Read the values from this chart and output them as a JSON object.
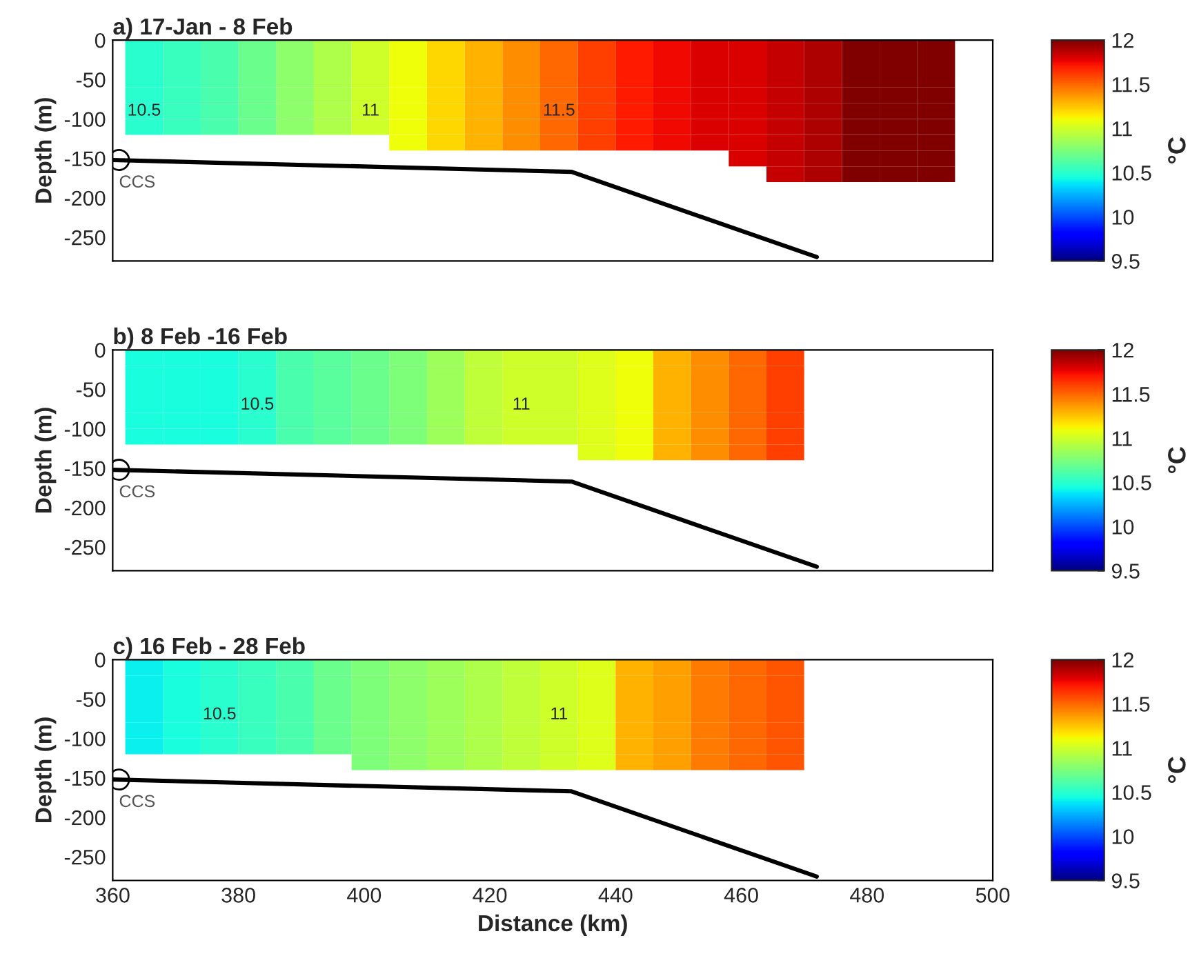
{
  "chart_data": [
    {
      "type": "heatmap",
      "title": "a) 17-Jan - 8 Feb",
      "ylabel": "Depth (m)",
      "clabel": "°C",
      "tick_labels": "y",
      "x": [
        365,
        371,
        377,
        383,
        389,
        395,
        401,
        407,
        413,
        419,
        425,
        431,
        437,
        443,
        449,
        455,
        461,
        467,
        473,
        479,
        485,
        491
      ],
      "y": [
        -10,
        -30,
        -50,
        -70,
        -90,
        -110,
        -130,
        -150,
        -170
      ],
      "cells": [
        [
          10.5,
          10.55,
          10.6,
          10.7,
          10.8,
          10.9,
          11.0,
          11.1,
          11.2,
          11.3,
          11.4,
          11.5,
          11.6,
          11.7,
          11.75,
          11.8,
          11.8,
          11.85,
          11.9,
          12,
          12,
          12
        ],
        [
          10.5,
          10.55,
          10.6,
          10.7,
          10.8,
          10.9,
          11.0,
          11.1,
          11.2,
          11.3,
          11.4,
          11.5,
          11.6,
          11.7,
          11.75,
          11.8,
          11.8,
          11.85,
          11.9,
          12,
          12,
          12
        ],
        [
          10.5,
          10.55,
          10.6,
          10.7,
          10.8,
          10.9,
          11.0,
          11.1,
          11.2,
          11.3,
          11.4,
          11.5,
          11.6,
          11.7,
          11.75,
          11.8,
          11.8,
          11.85,
          11.9,
          12,
          12,
          12
        ],
        [
          10.5,
          10.55,
          10.6,
          10.7,
          10.8,
          10.9,
          11.0,
          11.1,
          11.2,
          11.3,
          11.4,
          11.5,
          11.6,
          11.7,
          11.75,
          11.8,
          11.8,
          11.85,
          11.9,
          12,
          12,
          12
        ],
        [
          10.5,
          10.55,
          10.6,
          10.7,
          10.8,
          10.9,
          11.0,
          11.1,
          11.2,
          11.3,
          11.4,
          11.5,
          11.6,
          11.7,
          11.75,
          11.8,
          11.8,
          11.85,
          11.9,
          12,
          12,
          12
        ],
        [
          10.5,
          10.55,
          10.6,
          10.7,
          10.8,
          10.9,
          11.0,
          11.1,
          11.2,
          11.3,
          11.4,
          11.5,
          11.6,
          11.7,
          11.75,
          11.8,
          11.8,
          11.85,
          11.9,
          12,
          12,
          12
        ],
        [
          null,
          null,
          null,
          null,
          null,
          null,
          null,
          11.1,
          11.2,
          11.3,
          11.4,
          11.5,
          11.6,
          11.7,
          11.75,
          11.8,
          11.8,
          11.85,
          11.9,
          12,
          12,
          12
        ],
        [
          null,
          null,
          null,
          null,
          null,
          null,
          null,
          null,
          null,
          null,
          null,
          null,
          null,
          null,
          null,
          null,
          11.8,
          11.85,
          11.9,
          12,
          12,
          12
        ],
        [
          null,
          null,
          null,
          null,
          null,
          null,
          null,
          null,
          null,
          null,
          null,
          null,
          null,
          null,
          null,
          null,
          null,
          11.85,
          11.9,
          12,
          12,
          12
        ]
      ],
      "clim": [
        9.5,
        12
      ],
      "cticks": [
        9.5,
        10,
        10.5,
        11,
        11.5,
        12
      ],
      "xlim": [
        360,
        500
      ],
      "xticks": [
        360,
        380,
        400,
        420,
        440,
        460,
        480,
        500
      ],
      "ylim": [
        -280,
        0
      ],
      "yticks": [
        -250,
        -200,
        -150,
        -100,
        -50,
        0
      ],
      "series": [
        {
          "type": "line",
          "color": "#000000",
          "x": [
            360,
            433,
            472
          ],
          "values": [
            -152,
            -167,
            -275
          ]
        },
        {
          "type": "scatter",
          "color": "#000000",
          "marker": "circle",
          "x": [
            361
          ],
          "values": [
            -152
          ]
        }
      ],
      "annotations": [
        "10.5",
        "11",
        "11.5",
        "CCS"
      ]
    },
    {
      "type": "heatmap",
      "title": "b) 8 Feb -16 Feb",
      "ylabel": "Depth (m)",
      "clabel": "°C",
      "tick_labels": "y",
      "x": [
        365,
        371,
        377,
        383,
        389,
        395,
        401,
        407,
        413,
        419,
        425,
        431,
        437,
        443,
        449,
        455,
        461,
        467
      ],
      "y": [
        -10,
        -30,
        -50,
        -70,
        -90,
        -110,
        -130
      ],
      "cells": [
        [
          10.45,
          10.45,
          10.45,
          10.5,
          10.6,
          10.65,
          10.7,
          10.75,
          10.85,
          10.95,
          11.0,
          11.0,
          11.05,
          11.1,
          11.3,
          11.4,
          11.5,
          11.6
        ],
        [
          10.45,
          10.45,
          10.45,
          10.5,
          10.6,
          10.65,
          10.7,
          10.75,
          10.85,
          10.95,
          11.0,
          11.0,
          11.05,
          11.1,
          11.3,
          11.4,
          11.5,
          11.6
        ],
        [
          10.45,
          10.45,
          10.45,
          10.5,
          10.6,
          10.65,
          10.7,
          10.75,
          10.85,
          10.95,
          11.0,
          11.0,
          11.05,
          11.1,
          11.3,
          11.4,
          11.5,
          11.6
        ],
        [
          10.45,
          10.45,
          10.45,
          10.5,
          10.6,
          10.65,
          10.7,
          10.75,
          10.85,
          10.95,
          11.0,
          11.0,
          11.05,
          11.1,
          11.3,
          11.4,
          11.5,
          11.6
        ],
        [
          10.45,
          10.45,
          10.45,
          10.5,
          10.6,
          10.65,
          10.7,
          10.75,
          10.85,
          10.95,
          11.0,
          11.0,
          11.05,
          11.1,
          11.3,
          11.4,
          11.5,
          11.6
        ],
        [
          10.45,
          10.45,
          10.45,
          10.5,
          10.6,
          10.65,
          10.7,
          10.75,
          10.85,
          10.95,
          11.0,
          11.0,
          11.05,
          11.1,
          11.3,
          11.4,
          11.5,
          11.6
        ],
        [
          null,
          null,
          null,
          null,
          null,
          null,
          null,
          null,
          null,
          null,
          null,
          null,
          11.05,
          11.1,
          11.3,
          11.4,
          11.5,
          11.6
        ]
      ],
      "clim": [
        9.5,
        12
      ],
      "cticks": [
        9.5,
        10,
        10.5,
        11,
        11.5,
        12
      ],
      "xlim": [
        360,
        500
      ],
      "xticks": [
        360,
        380,
        400,
        420,
        440,
        460,
        480,
        500
      ],
      "ylim": [
        -280,
        0
      ],
      "yticks": [
        -250,
        -200,
        -150,
        -100,
        -50,
        0
      ],
      "series": [
        {
          "type": "line",
          "color": "#000000",
          "x": [
            360,
            433,
            472
          ],
          "values": [
            -152,
            -167,
            -275
          ]
        },
        {
          "type": "scatter",
          "color": "#000000",
          "marker": "circle",
          "x": [
            361
          ],
          "values": [
            -152
          ]
        }
      ],
      "annotations": [
        "10.5",
        "11",
        "CCS"
      ]
    },
    {
      "type": "heatmap",
      "title": "c) 16 Feb - 28 Feb",
      "xlabel": "Distance (km)",
      "ylabel": "Depth (m)",
      "clabel": "°C",
      "x": [
        365,
        371,
        377,
        383,
        389,
        395,
        401,
        407,
        413,
        419,
        425,
        431,
        437,
        443,
        449,
        455,
        461,
        467
      ],
      "y": [
        -10,
        -30,
        -50,
        -70,
        -90,
        -110,
        -130
      ],
      "cells": [
        [
          10.4,
          10.45,
          10.5,
          10.55,
          10.6,
          10.7,
          10.75,
          10.8,
          10.85,
          10.9,
          10.95,
          11.0,
          11.05,
          11.3,
          11.35,
          11.45,
          11.5,
          11.55
        ],
        [
          10.4,
          10.45,
          10.5,
          10.55,
          10.6,
          10.7,
          10.75,
          10.8,
          10.85,
          10.9,
          10.95,
          11.0,
          11.05,
          11.3,
          11.35,
          11.45,
          11.5,
          11.55
        ],
        [
          10.4,
          10.45,
          10.5,
          10.55,
          10.6,
          10.7,
          10.75,
          10.8,
          10.85,
          10.9,
          10.95,
          11.0,
          11.05,
          11.3,
          11.35,
          11.45,
          11.5,
          11.55
        ],
        [
          10.4,
          10.45,
          10.5,
          10.55,
          10.6,
          10.7,
          10.75,
          10.8,
          10.85,
          10.9,
          10.95,
          11.0,
          11.05,
          11.3,
          11.35,
          11.45,
          11.5,
          11.55
        ],
        [
          10.4,
          10.45,
          10.5,
          10.55,
          10.6,
          10.7,
          10.75,
          10.8,
          10.85,
          10.9,
          10.95,
          11.0,
          11.05,
          11.3,
          11.35,
          11.45,
          11.5,
          11.55
        ],
        [
          10.4,
          10.45,
          10.5,
          10.55,
          10.6,
          10.7,
          10.75,
          10.8,
          10.85,
          10.9,
          10.95,
          11.0,
          11.05,
          11.3,
          11.35,
          11.45,
          11.5,
          11.55
        ],
        [
          null,
          null,
          null,
          null,
          null,
          null,
          10.75,
          10.8,
          10.85,
          10.9,
          10.95,
          11.0,
          11.05,
          11.3,
          11.35,
          11.45,
          11.5,
          11.55
        ]
      ],
      "clim": [
        9.5,
        12
      ],
      "cticks": [
        9.5,
        10,
        10.5,
        11,
        11.5,
        12
      ],
      "xlim": [
        360,
        500
      ],
      "xticks": [
        360,
        380,
        400,
        420,
        440,
        460,
        480,
        500
      ],
      "ylim": [
        -280,
        0
      ],
      "yticks": [
        -250,
        -200,
        -150,
        -100,
        -50,
        0
      ],
      "series": [
        {
          "type": "line",
          "color": "#000000",
          "x": [
            360,
            433,
            472
          ],
          "values": [
            -152,
            -167,
            -275
          ]
        },
        {
          "type": "scatter",
          "color": "#000000",
          "marker": "circle",
          "x": [
            361
          ],
          "values": [
            -152
          ]
        }
      ],
      "annotations": [
        "10.5",
        "11",
        "CCS"
      ]
    }
  ]
}
